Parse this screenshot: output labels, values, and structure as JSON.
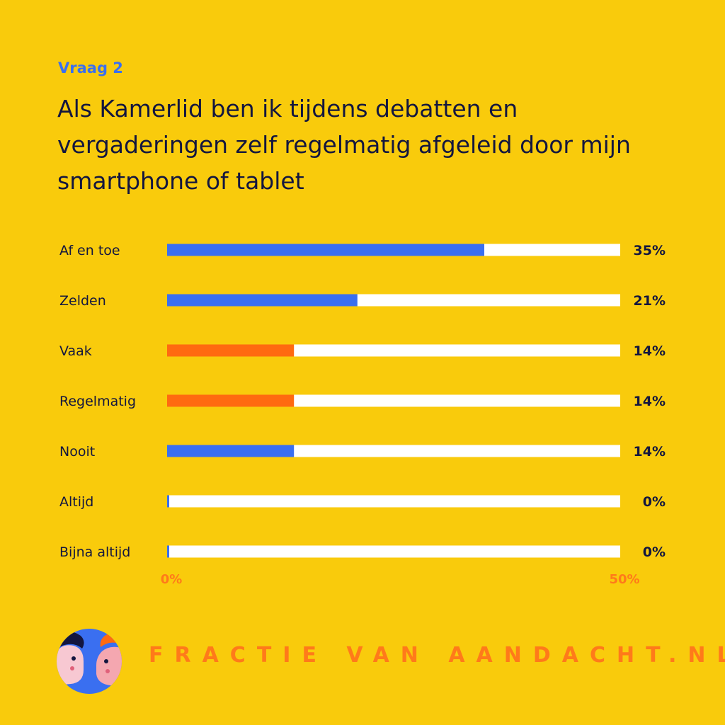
{
  "header": {
    "eyebrow": "Vraag 2",
    "title": "Als Kamerlid ben ik tijdens debatten en vergaderingen zelf regelmatig afgeleid door mijn smartphone of tablet"
  },
  "chart_data": {
    "type": "bar",
    "orientation": "horizontal",
    "categories": [
      "Af en toe",
      "Zelden",
      "Vaak",
      "Regelmatig",
      "Nooit",
      "Altijd",
      "Bijna altijd"
    ],
    "values": [
      35,
      21,
      14,
      14,
      14,
      0,
      0
    ],
    "value_labels": [
      "35%",
      "21%",
      "14%",
      "14%",
      "14%",
      "0%",
      "0%"
    ],
    "bar_colors": [
      "#3a6ff0",
      "#3a6ff0",
      "#ff6a10",
      "#ff6a10",
      "#3a6ff0",
      "#3a6ff0",
      "#3a6ff0"
    ],
    "track_color": "#ffffff",
    "xlim": [
      0,
      50
    ],
    "x_tick_labels": [
      "0%",
      "50%"
    ],
    "grid": false,
    "legend": "none"
  },
  "colors": {
    "background": "#f9cb0c",
    "accent_blue": "#3a6ff0",
    "accent_orange": "#ff6a10",
    "text_dark": "#13163f"
  },
  "footer": {
    "brand": "FRACTIE VAN AANDACHT.NL",
    "logo_icon": "two-faces-icon"
  }
}
